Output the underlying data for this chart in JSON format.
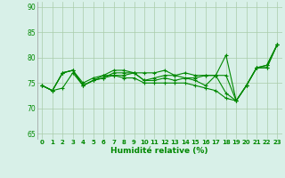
{
  "xlabel": "Humidité relative (%)",
  "background_color": "#d8f0e8",
  "grid_color": "#aaccaa",
  "line_color": "#008800",
  "xlim": [
    -0.5,
    23.5
  ],
  "ylim": [
    64,
    91
  ],
  "yticks": [
    65,
    70,
    75,
    80,
    85,
    90
  ],
  "xticks": [
    0,
    1,
    2,
    3,
    4,
    5,
    6,
    7,
    8,
    9,
    10,
    11,
    12,
    13,
    14,
    15,
    16,
    17,
    18,
    19,
    20,
    21,
    22,
    23
  ],
  "series": [
    [
      74.5,
      73.5,
      77.0,
      77.5,
      74.5,
      75.5,
      76.5,
      77.5,
      77.5,
      77.0,
      77.0,
      77.0,
      77.5,
      76.5,
      77.0,
      76.5,
      76.5,
      76.5,
      80.5,
      71.5,
      74.5,
      78.0,
      78.5,
      82.5
    ],
    [
      74.5,
      73.5,
      77.0,
      77.5,
      75.0,
      76.0,
      76.5,
      76.5,
      76.5,
      77.0,
      75.5,
      76.0,
      76.5,
      76.5,
      76.0,
      76.0,
      76.5,
      76.5,
      76.5,
      71.5,
      74.5,
      78.0,
      78.5,
      82.5
    ],
    [
      74.5,
      73.5,
      77.0,
      77.5,
      74.5,
      75.5,
      76.0,
      77.0,
      77.0,
      77.0,
      75.5,
      75.5,
      76.0,
      75.5,
      76.0,
      75.5,
      74.5,
      76.5,
      73.0,
      71.5,
      74.5,
      78.0,
      78.0,
      82.5
    ],
    [
      74.5,
      73.5,
      74.0,
      77.0,
      74.5,
      75.5,
      76.0,
      76.5,
      76.0,
      76.0,
      75.0,
      75.0,
      75.0,
      75.0,
      75.0,
      74.5,
      74.0,
      73.5,
      72.0,
      71.5,
      74.5,
      78.0,
      78.0,
      82.5
    ]
  ]
}
